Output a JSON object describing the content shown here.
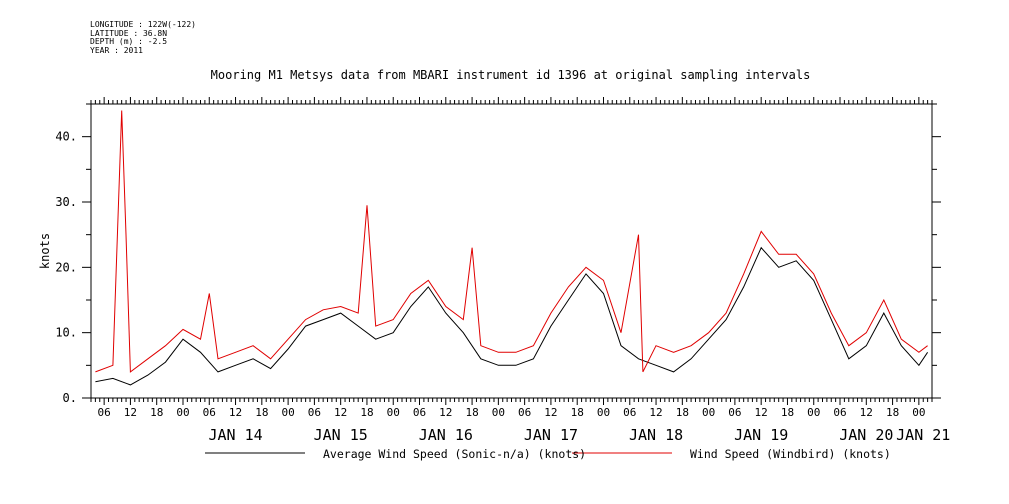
{
  "meta": {
    "longitude": "LONGITUDE : 122W(-122)",
    "latitude": "LATITUDE : 36.8N",
    "depth": "DEPTH (m) : -2.5",
    "year": "YEAR : 2011"
  },
  "chart_data": {
    "type": "line",
    "title": "Mooring M1 Metsys data from MBARI instrument id 1396 at original sampling intervals",
    "xlabel": "",
    "ylabel": "knots",
    "xlim": [
      "2011-01-13T03:00",
      "2011-01-21T03:00"
    ],
    "ylim": [
      0,
      45
    ],
    "y_ticks": [
      0,
      10,
      20,
      30,
      40
    ],
    "y_tick_labels": [
      "0.",
      "10.",
      "20.",
      "30.",
      "40."
    ],
    "hour_tick_labels": [
      "06",
      "12",
      "18",
      "00",
      "06",
      "12",
      "18",
      "00",
      "06",
      "12",
      "18",
      "00",
      "06",
      "12",
      "18",
      "00",
      "06",
      "12",
      "18",
      "00",
      "06",
      "12",
      "18",
      "00",
      "06",
      "12",
      "18",
      "00",
      "06",
      "12",
      "18",
      "00"
    ],
    "day_labels": [
      {
        "text": "JAN 14",
        "at": "2011-01-14T12:00"
      },
      {
        "text": "JAN 15",
        "at": "2011-01-15T12:00"
      },
      {
        "text": "JAN 16",
        "at": "2011-01-16T12:00"
      },
      {
        "text": "JAN 17",
        "at": "2011-01-17T12:00"
      },
      {
        "text": "JAN 18",
        "at": "2011-01-18T12:00"
      },
      {
        "text": "JAN 19",
        "at": "2011-01-19T12:00"
      },
      {
        "text": "JAN 20",
        "at": "2011-01-20T12:00"
      },
      {
        "text": "JAN 21",
        "at": "2011-01-21T01:00"
      }
    ],
    "grid": false,
    "legend_position": "bottom",
    "series": [
      {
        "name": "Average Wind Speed (Sonic-n/a) (knots)",
        "color": "#000000",
        "points": [
          [
            "2011-01-13T04:00",
            2.5
          ],
          [
            "2011-01-13T08:00",
            3
          ],
          [
            "2011-01-13T12:00",
            2
          ],
          [
            "2011-01-13T16:00",
            3.5
          ],
          [
            "2011-01-13T20:00",
            5.5
          ],
          [
            "2011-01-14T00:00",
            9
          ],
          [
            "2011-01-14T04:00",
            7
          ],
          [
            "2011-01-14T08:00",
            4
          ],
          [
            "2011-01-14T12:00",
            5
          ],
          [
            "2011-01-14T16:00",
            6
          ],
          [
            "2011-01-14T20:00",
            4.5
          ],
          [
            "2011-01-15T00:00",
            7.5
          ],
          [
            "2011-01-15T04:00",
            11
          ],
          [
            "2011-01-15T08:00",
            12
          ],
          [
            "2011-01-15T12:00",
            13
          ],
          [
            "2011-01-15T16:00",
            11
          ],
          [
            "2011-01-15T20:00",
            9
          ],
          [
            "2011-01-16T00:00",
            10
          ],
          [
            "2011-01-16T04:00",
            14
          ],
          [
            "2011-01-16T08:00",
            17
          ],
          [
            "2011-01-16T12:00",
            13
          ],
          [
            "2011-01-16T16:00",
            10
          ],
          [
            "2011-01-16T20:00",
            6
          ],
          [
            "2011-01-17T00:00",
            5
          ],
          [
            "2011-01-17T04:00",
            5
          ],
          [
            "2011-01-17T08:00",
            6
          ],
          [
            "2011-01-17T12:00",
            11
          ],
          [
            "2011-01-17T16:00",
            15
          ],
          [
            "2011-01-17T20:00",
            19
          ],
          [
            "2011-01-18T00:00",
            16
          ],
          [
            "2011-01-18T04:00",
            8
          ],
          [
            "2011-01-18T08:00",
            6
          ],
          [
            "2011-01-18T12:00",
            5
          ],
          [
            "2011-01-18T16:00",
            4
          ],
          [
            "2011-01-18T20:00",
            6
          ],
          [
            "2011-01-19T00:00",
            9
          ],
          [
            "2011-01-19T04:00",
            12
          ],
          [
            "2011-01-19T08:00",
            17
          ],
          [
            "2011-01-19T12:00",
            23
          ],
          [
            "2011-01-19T16:00",
            20
          ],
          [
            "2011-01-19T20:00",
            21
          ],
          [
            "2011-01-20T00:00",
            18
          ],
          [
            "2011-01-20T04:00",
            12
          ],
          [
            "2011-01-20T08:00",
            6
          ],
          [
            "2011-01-20T12:00",
            8
          ],
          [
            "2011-01-20T16:00",
            13
          ],
          [
            "2011-01-20T20:00",
            8
          ],
          [
            "2011-01-21T00:00",
            5
          ],
          [
            "2011-01-21T02:00",
            7
          ]
        ]
      },
      {
        "name": "Wind Speed (Windbird) (knots)",
        "color": "#e00000",
        "points": [
          [
            "2011-01-13T04:00",
            4
          ],
          [
            "2011-01-13T08:00",
            5
          ],
          [
            "2011-01-13T10:00",
            44
          ],
          [
            "2011-01-13T11:00",
            25
          ],
          [
            "2011-01-13T12:00",
            4
          ],
          [
            "2011-01-13T16:00",
            6
          ],
          [
            "2011-01-13T20:00",
            8
          ],
          [
            "2011-01-14T00:00",
            10.5
          ],
          [
            "2011-01-14T04:00",
            9
          ],
          [
            "2011-01-14T06:00",
            16
          ],
          [
            "2011-01-14T08:00",
            6
          ],
          [
            "2011-01-14T12:00",
            7
          ],
          [
            "2011-01-14T16:00",
            8
          ],
          [
            "2011-01-14T20:00",
            6
          ],
          [
            "2011-01-15T00:00",
            9
          ],
          [
            "2011-01-15T04:00",
            12
          ],
          [
            "2011-01-15T08:00",
            13.5
          ],
          [
            "2011-01-15T12:00",
            14
          ],
          [
            "2011-01-15T16:00",
            13
          ],
          [
            "2011-01-15T18:00",
            29.5
          ],
          [
            "2011-01-15T20:00",
            11
          ],
          [
            "2011-01-16T00:00",
            12
          ],
          [
            "2011-01-16T04:00",
            16
          ],
          [
            "2011-01-16T08:00",
            18
          ],
          [
            "2011-01-16T12:00",
            14
          ],
          [
            "2011-01-16T16:00",
            12
          ],
          [
            "2011-01-16T18:00",
            23
          ],
          [
            "2011-01-16T20:00",
            8
          ],
          [
            "2011-01-17T00:00",
            7
          ],
          [
            "2011-01-17T04:00",
            7
          ],
          [
            "2011-01-17T08:00",
            8
          ],
          [
            "2011-01-17T12:00",
            13
          ],
          [
            "2011-01-17T16:00",
            17
          ],
          [
            "2011-01-17T20:00",
            20
          ],
          [
            "2011-01-18T00:00",
            18
          ],
          [
            "2011-01-18T04:00",
            10
          ],
          [
            "2011-01-18T08:00",
            25
          ],
          [
            "2011-01-18T09:00",
            4
          ],
          [
            "2011-01-18T12:00",
            8
          ],
          [
            "2011-01-18T16:00",
            7
          ],
          [
            "2011-01-18T20:00",
            8
          ],
          [
            "2011-01-19T00:00",
            10
          ],
          [
            "2011-01-19T04:00",
            13
          ],
          [
            "2011-01-19T08:00",
            19
          ],
          [
            "2011-01-19T12:00",
            25.5
          ],
          [
            "2011-01-19T16:00",
            22
          ],
          [
            "2011-01-19T20:00",
            22
          ],
          [
            "2011-01-20T00:00",
            19
          ],
          [
            "2011-01-20T04:00",
            13
          ],
          [
            "2011-01-20T08:00",
            8
          ],
          [
            "2011-01-20T12:00",
            10
          ],
          [
            "2011-01-20T16:00",
            15
          ],
          [
            "2011-01-20T20:00",
            9
          ],
          [
            "2011-01-21T00:00",
            7
          ],
          [
            "2011-01-21T02:00",
            8
          ]
        ]
      }
    ]
  }
}
